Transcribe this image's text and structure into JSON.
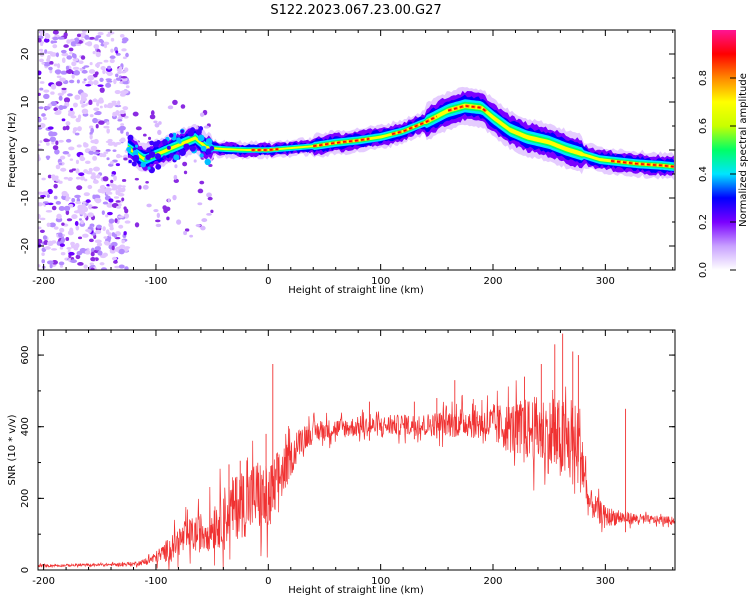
{
  "title": "S122.2023.067.23.00.G27",
  "chart_data": [
    {
      "type": "heatmap",
      "xlabel": "Height of straight line (km)",
      "ylabel": "Frequency (Hz)",
      "xlim": [
        -205,
        362
      ],
      "ylim": [
        -25,
        25
      ],
      "xticks": [
        -200,
        -100,
        0,
        100,
        200,
        300
      ],
      "yticks": [
        -20,
        -10,
        0,
        10,
        20
      ],
      "colorbar": {
        "label": "Normalized spectral amplitude",
        "range": [
          0,
          1
        ],
        "ticks": [
          0.0,
          0.2,
          0.4,
          0.6,
          0.8
        ],
        "colors": [
          "#ffffff",
          "#c8a0ff",
          "#7a00ff",
          "#0000ff",
          "#00e5ff",
          "#00ff66",
          "#c8ff00",
          "#ffff00",
          "#ff8800",
          "#ff0000",
          "#ff1493"
        ]
      },
      "ridge": {
        "name": "dominant frequency",
        "x": [
          -125,
          -110,
          -95,
          -80,
          -65,
          -55,
          -40,
          -20,
          0,
          20,
          40,
          60,
          80,
          100,
          120,
          140,
          160,
          175,
          190,
          200,
          215,
          230,
          250,
          265,
          280,
          295,
          310,
          330,
          350,
          362
        ],
        "y": [
          0.5,
          -2.0,
          -0.5,
          1.0,
          2.5,
          0.5,
          0.2,
          0.0,
          0.0,
          0.4,
          0.8,
          1.5,
          2.0,
          2.7,
          3.9,
          5.8,
          8.2,
          9.2,
          8.8,
          6.8,
          4.2,
          2.7,
          1.6,
          0.2,
          -0.9,
          -2.0,
          -2.4,
          -2.9,
          -3.2,
          -3.5
        ]
      },
      "noise_region_x": [
        -205,
        -125
      ]
    },
    {
      "type": "line",
      "xlabel": "Height of straight line (km)",
      "ylabel": "SNR (10 * v/v)",
      "xlim": [
        -205,
        362
      ],
      "ylim": [
        0,
        670
      ],
      "xticks": [
        -200,
        -100,
        0,
        100,
        200,
        300
      ],
      "yticks": [
        0,
        200,
        400,
        600
      ],
      "series": [
        {
          "color": "#f03232",
          "x": [
            -205,
            -180,
            -160,
            -140,
            -120,
            -110,
            -100,
            -90,
            -80,
            -70,
            -60,
            -50,
            -40,
            -30,
            -20,
            -10,
            0,
            10,
            20,
            30,
            40,
            60,
            80,
            100,
            120,
            140,
            160,
            180,
            200,
            220,
            240,
            260,
            278,
            285,
            300,
            320,
            340,
            362
          ],
          "y": [
            12,
            13,
            14,
            15,
            17,
            22,
            35,
            55,
            80,
            95,
            105,
            120,
            150,
            175,
            190,
            210,
            185,
            260,
            310,
            370,
            385,
            395,
            400,
            402,
            405,
            405,
            410,
            415,
            405,
            395,
            390,
            360,
            340,
            190,
            150,
            145,
            140,
            138
          ],
          "spread": [
            5,
            5,
            5,
            6,
            8,
            12,
            25,
            45,
            60,
            70,
            80,
            95,
            120,
            130,
            140,
            150,
            150,
            120,
            70,
            55,
            45,
            40,
            40,
            40,
            42,
            45,
            55,
            65,
            80,
            110,
            140,
            170,
            180,
            60,
            40,
            25,
            18,
            15
          ],
          "spikes": [
            [
              4,
              575
            ],
            [
              -2,
              380
            ],
            [
              -25,
              305
            ],
            [
              -35,
              295
            ],
            [
              166,
              530
            ],
            [
              228,
              540
            ],
            [
              243,
              575
            ],
            [
              255,
              630
            ],
            [
              262,
              660
            ],
            [
              271,
              610
            ],
            [
              276,
              600
            ],
            [
              318,
              450
            ],
            [
              -28,
              260
            ],
            [
              90,
              470
            ],
            [
              130,
              470
            ],
            [
              150,
              480
            ]
          ]
        }
      ]
    }
  ]
}
